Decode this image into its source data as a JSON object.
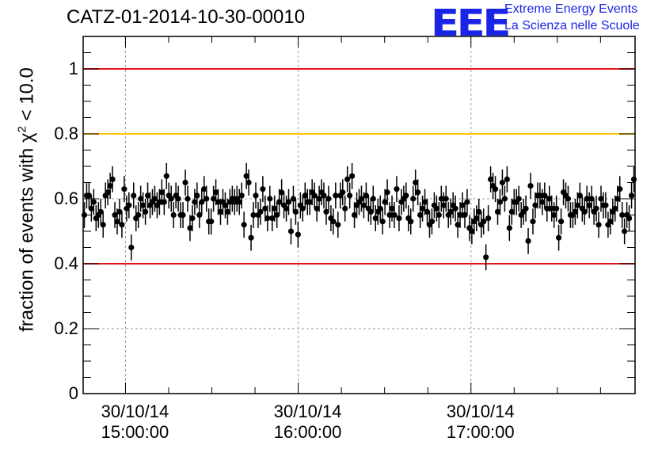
{
  "chart_data": {
    "type": "scatter",
    "title": "CATZ-01-2014-10-30-00010",
    "ylabel_main": "fraction of events with",
    "ylabel_chi": "χ",
    "ylabel_exp": "2",
    "ylabel_tail": "< 10.0",
    "ylim": [
      0,
      1.1
    ],
    "xlim_minutes": [
      -9.8,
      118
    ],
    "y_ticks": [
      "0",
      "0.2",
      "0.4",
      "0.6",
      "0.8",
      "1"
    ],
    "y_tick_values": [
      0,
      0.2,
      0.4,
      0.6,
      0.8,
      1.0
    ],
    "x_ticks": [
      {
        "date": "30/10/14",
        "time": "15:00:00",
        "minutes": 0
      },
      {
        "date": "30/10/14",
        "time": "16:00:00",
        "minutes": 40
      },
      {
        "date": "30/10/14",
        "time": "17:00:00",
        "minutes": 80
      }
    ],
    "reference_lines": [
      {
        "y": 1.0,
        "color": "#e8141b"
      },
      {
        "y": 0.8,
        "color": "#ffc20e"
      },
      {
        "y": 0.4,
        "color": "#e8141b"
      }
    ],
    "grid": true,
    "error_bar": 0.04,
    "marker_color": "#000000",
    "values": [
      0.55,
      0.61,
      0.61,
      0.57,
      0.59,
      0.54,
      0.55,
      0.56,
      0.52,
      0.61,
      0.62,
      0.64,
      0.66,
      0.55,
      0.53,
      0.56,
      0.52,
      0.63,
      0.57,
      0.58,
      0.45,
      0.61,
      0.54,
      0.55,
      0.6,
      0.58,
      0.56,
      0.61,
      0.58,
      0.59,
      0.6,
      0.58,
      0.59,
      0.62,
      0.59,
      0.67,
      0.61,
      0.6,
      0.55,
      0.61,
      0.6,
      0.55,
      0.55,
      0.65,
      0.6,
      0.51,
      0.54,
      0.59,
      0.61,
      0.55,
      0.59,
      0.63,
      0.6,
      0.53,
      0.53,
      0.6,
      0.62,
      0.59,
      0.56,
      0.59,
      0.58,
      0.56,
      0.59,
      0.6,
      0.59,
      0.6,
      0.59,
      0.61,
      0.52,
      0.67,
      0.65,
      0.48,
      0.55,
      0.61,
      0.55,
      0.56,
      0.63,
      0.57,
      0.54,
      0.6,
      0.54,
      0.57,
      0.55,
      0.59,
      0.62,
      0.58,
      0.57,
      0.59,
      0.5,
      0.6,
      0.56,
      0.49,
      0.58,
      0.57,
      0.61,
      0.59,
      0.59,
      0.62,
      0.61,
      0.57,
      0.6,
      0.62,
      0.61,
      0.56,
      0.6,
      0.54,
      0.53,
      0.61,
      0.52,
      0.61,
      0.62,
      0.57,
      0.66,
      0.61,
      0.67,
      0.55,
      0.58,
      0.59,
      0.6,
      0.58,
      0.61,
      0.57,
      0.56,
      0.6,
      0.54,
      0.56,
      0.57,
      0.53,
      0.59,
      0.62,
      0.55,
      0.57,
      0.55,
      0.63,
      0.54,
      0.59,
      0.6,
      0.61,
      0.54,
      0.53,
      0.6,
      0.65,
      0.62,
      0.55,
      0.57,
      0.59,
      0.56,
      0.52,
      0.53,
      0.58,
      0.57,
      0.55,
      0.6,
      0.58,
      0.6,
      0.55,
      0.56,
      0.58,
      0.57,
      0.52,
      0.55,
      0.58,
      0.55,
      0.59,
      0.51,
      0.5,
      0.53,
      0.54,
      0.56,
      0.52,
      0.53,
      0.42,
      0.54,
      0.66,
      0.64,
      0.63,
      0.56,
      0.59,
      0.65,
      0.6,
      0.66,
      0.51,
      0.56,
      0.59,
      0.59,
      0.6,
      0.55,
      0.56,
      0.57,
      0.47,
      0.64,
      0.53,
      0.58,
      0.61,
      0.61,
      0.59,
      0.61,
      0.57,
      0.6,
      0.57,
      0.55,
      0.57,
      0.48,
      0.53,
      0.62,
      0.61,
      0.6,
      0.55,
      0.55,
      0.56,
      0.58,
      0.61,
      0.57,
      0.56,
      0.6,
      0.58,
      0.6,
      0.56,
      0.57,
      0.52,
      0.6,
      0.58,
      0.58,
      0.52,
      0.53,
      0.56,
      0.57,
      0.6,
      0.63,
      0.55,
      0.5,
      0.55,
      0.54,
      0.61,
      0.66
    ]
  },
  "logo": {
    "mark": "EEE",
    "line1": "Extreme Energy Events",
    "line2": "La Scienza nelle Scuole",
    "color": "#1a24e6"
  }
}
